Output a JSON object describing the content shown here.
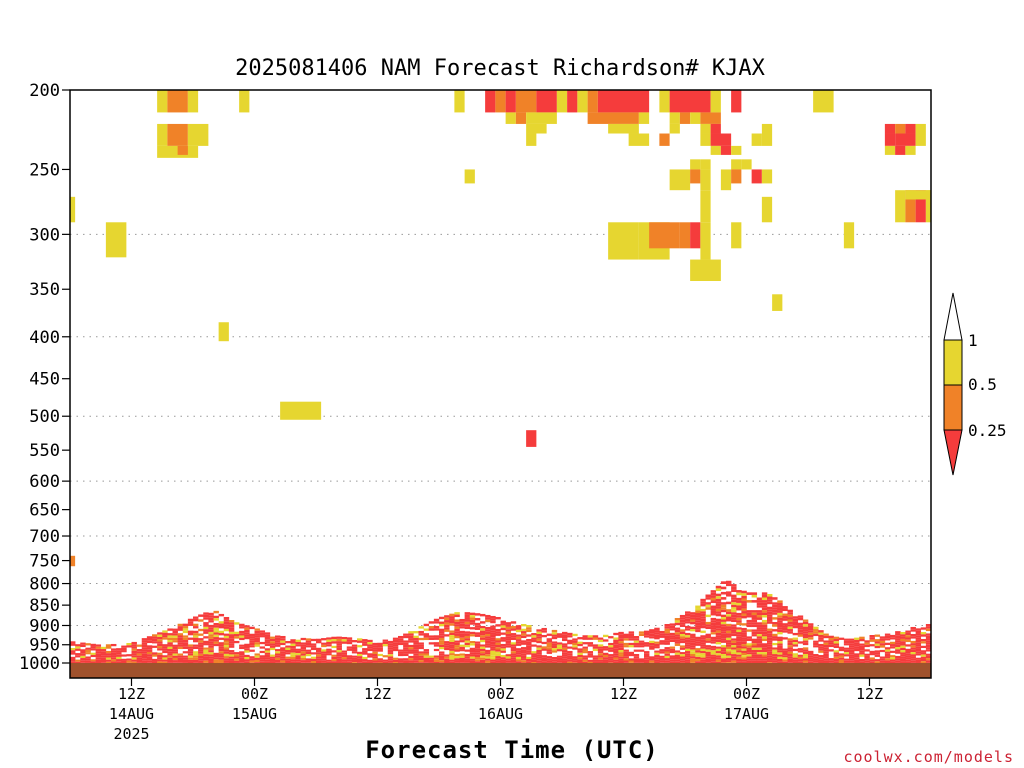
{
  "chart_data": {
    "type": "heatmap",
    "title": "2025081406 NAM Forecast Richardson# KJAX",
    "xlabel": "Forecast Time (UTC)",
    "ylabel": "",
    "y_scale": "log",
    "y_reversed": true,
    "ylim": [
      1000,
      200
    ],
    "y_ticks": [
      200,
      250,
      300,
      350,
      400,
      450,
      500,
      550,
      600,
      650,
      700,
      750,
      800,
      850,
      900,
      950,
      1000
    ],
    "y_gridlines": [
      300,
      400,
      500,
      600,
      700,
      800,
      900
    ],
    "grid": true,
    "xlim_hours": [
      0,
      84
    ],
    "x_ticks": [
      {
        "hour": 6,
        "label": "12Z",
        "date": "14AUG",
        "year": "2025"
      },
      {
        "hour": 18,
        "label": "00Z",
        "date": "15AUG",
        "year": ""
      },
      {
        "hour": 30,
        "label": "12Z",
        "date": "",
        "year": ""
      },
      {
        "hour": 42,
        "label": "00Z",
        "date": "16AUG",
        "year": ""
      },
      {
        "hour": 54,
        "label": "12Z",
        "date": "",
        "year": ""
      },
      {
        "hour": 66,
        "label": "00Z",
        "date": "17AUG",
        "year": ""
      },
      {
        "hour": 78,
        "label": "12Z",
        "date": "",
        "year": ""
      }
    ],
    "colorbar": {
      "levels": [
        "1",
        "0.5",
        "0.25"
      ],
      "bins": [
        {
          "range": "> 1",
          "color": "#ffffff"
        },
        {
          "range": "0.5 - 1",
          "color": "#e6d630"
        },
        {
          "range": "0.25 - 0.5",
          "color": "#f08228"
        },
        {
          "range": "< 0.25",
          "color": "#f53c3c"
        }
      ],
      "position": "right"
    },
    "ground_color": "#a0522d",
    "upper_cells": [
      {
        "t": [
          8.5,
          9.5
        ],
        "p": [
          200,
          213
        ],
        "c": "y"
      },
      {
        "t": [
          9.5,
          11.5
        ],
        "p": [
          200,
          213
        ],
        "c": "o"
      },
      {
        "t": [
          11.5,
          12.5
        ],
        "p": [
          200,
          213
        ],
        "c": "y"
      },
      {
        "t": [
          16.5,
          17.5
        ],
        "p": [
          200,
          213
        ],
        "c": "y"
      },
      {
        "t": [
          37.5,
          38.5
        ],
        "p": [
          200,
          213
        ],
        "c": "y"
      },
      {
        "t": [
          40.5,
          41.5
        ],
        "p": [
          200,
          213
        ],
        "c": "r"
      },
      {
        "t": [
          41.5,
          42.5
        ],
        "p": [
          200,
          213
        ],
        "c": "o"
      },
      {
        "t": [
          42.5,
          43.5
        ],
        "p": [
          200,
          213
        ],
        "c": "r"
      },
      {
        "t": [
          43.5,
          45.5
        ],
        "p": [
          200,
          213
        ],
        "c": "o"
      },
      {
        "t": [
          45.5,
          47.5
        ],
        "p": [
          200,
          213
        ],
        "c": "r"
      },
      {
        "t": [
          47.5,
          48.5
        ],
        "p": [
          200,
          213
        ],
        "c": "y"
      },
      {
        "t": [
          48.5,
          49.5
        ],
        "p": [
          200,
          213
        ],
        "c": "r"
      },
      {
        "t": [
          49.5,
          50.5
        ],
        "p": [
          200,
          213
        ],
        "c": "y"
      },
      {
        "t": [
          50.5,
          51.5
        ],
        "p": [
          200,
          213
        ],
        "c": "o"
      },
      {
        "t": [
          51.5,
          56.5
        ],
        "p": [
          200,
          213
        ],
        "c": "r"
      },
      {
        "t": [
          57.5,
          58.5
        ],
        "p": [
          200,
          213
        ],
        "c": "y"
      },
      {
        "t": [
          58.5,
          62.5
        ],
        "p": [
          200,
          213
        ],
        "c": "r"
      },
      {
        "t": [
          62.5,
          63.5
        ],
        "p": [
          200,
          213
        ],
        "c": "y"
      },
      {
        "t": [
          64.5,
          65.5
        ],
        "p": [
          200,
          213
        ],
        "c": "r"
      },
      {
        "t": [
          72.5,
          74.5
        ],
        "p": [
          200,
          213
        ],
        "c": "y"
      },
      {
        "t": [
          42.5,
          43.5
        ],
        "p": [
          213,
          220
        ],
        "c": "y"
      },
      {
        "t": [
          43.5,
          44.5
        ],
        "p": [
          213,
          220
        ],
        "c": "o"
      },
      {
        "t": [
          44.5,
          47.5
        ],
        "p": [
          213,
          220
        ],
        "c": "y"
      },
      {
        "t": [
          50.5,
          55.5
        ],
        "p": [
          213,
          220
        ],
        "c": "o"
      },
      {
        "t": [
          55.5,
          56.5
        ],
        "p": [
          213,
          220
        ],
        "c": "y"
      },
      {
        "t": [
          58.5,
          59.5
        ],
        "p": [
          213,
          220
        ],
        "c": "y"
      },
      {
        "t": [
          59.5,
          60.5
        ],
        "p": [
          213,
          220
        ],
        "c": "o"
      },
      {
        "t": [
          60.5,
          61.5
        ],
        "p": [
          213,
          220
        ],
        "c": "y"
      },
      {
        "t": [
          61.5,
          63.5
        ],
        "p": [
          213,
          220
        ],
        "c": "o"
      },
      {
        "t": [
          44.5,
          46.5
        ],
        "p": [
          220,
          226
        ],
        "c": "y"
      },
      {
        "t": [
          52.5,
          55.5
        ],
        "p": [
          220,
          226
        ],
        "c": "y"
      },
      {
        "t": [
          58.5,
          59.5
        ],
        "p": [
          220,
          226
        ],
        "c": "y"
      },
      {
        "t": [
          61.5,
          62.5
        ],
        "p": [
          220,
          226
        ],
        "c": "y"
      },
      {
        "t": [
          62.5,
          63.5
        ],
        "p": [
          220,
          226
        ],
        "c": "r"
      },
      {
        "t": [
          79.5,
          80.5
        ],
        "p": [
          220,
          226
        ],
        "c": "r"
      },
      {
        "t": [
          80.5,
          81.5
        ],
        "p": [
          220,
          226
        ],
        "c": "o"
      },
      {
        "t": [
          81.5,
          82.5
        ],
        "p": [
          220,
          226
        ],
        "c": "r"
      },
      {
        "t": [
          8.5,
          9.5
        ],
        "p": [
          220,
          234
        ],
        "c": "y"
      },
      {
        "t": [
          9.5,
          11.5
        ],
        "p": [
          220,
          234
        ],
        "c": "o"
      },
      {
        "t": [
          11.5,
          13.5
        ],
        "p": [
          220,
          234
        ],
        "c": "y"
      },
      {
        "t": [
          8.5,
          12.5
        ],
        "p": [
          234,
          242
        ],
        "c": "y"
      },
      {
        "t": [
          10.5,
          11.5
        ],
        "p": [
          234,
          240
        ],
        "c": "o"
      },
      {
        "t": [
          44.5,
          45.5
        ],
        "p": [
          226,
          234
        ],
        "c": "y"
      },
      {
        "t": [
          54.5,
          56.5
        ],
        "p": [
          226,
          234
        ],
        "c": "y"
      },
      {
        "t": [
          57.5,
          58.5
        ],
        "p": [
          226,
          234
        ],
        "c": "o"
      },
      {
        "t": [
          61.5,
          62.5
        ],
        "p": [
          226,
          234
        ],
        "c": "y"
      },
      {
        "t": [
          62.5,
          64.5
        ],
        "p": [
          226,
          234
        ],
        "c": "r"
      },
      {
        "t": [
          67.5,
          68.5
        ],
        "p": [
          220,
          234
        ],
        "c": "y"
      },
      {
        "t": [
          66.5,
          67.5
        ],
        "p": [
          226,
          234
        ],
        "c": "y"
      },
      {
        "t": [
          79.5,
          80.5
        ],
        "p": [
          226,
          234
        ],
        "c": "r"
      },
      {
        "t": [
          80.5,
          82.5
        ],
        "p": [
          226,
          234
        ],
        "c": "r"
      },
      {
        "t": [
          82.5,
          83.5
        ],
        "p": [
          220,
          234
        ],
        "c": "y"
      },
      {
        "t": [
          62.5,
          63.5
        ],
        "p": [
          234,
          240
        ],
        "c": "y"
      },
      {
        "t": [
          63.5,
          64.5
        ],
        "p": [
          234,
          240
        ],
        "c": "r"
      },
      {
        "t": [
          64.5,
          65.5
        ],
        "p": [
          234,
          240
        ],
        "c": "y"
      },
      {
        "t": [
          79.5,
          80.5
        ],
        "p": [
          234,
          240
        ],
        "c": "y"
      },
      {
        "t": [
          80.5,
          81.5
        ],
        "p": [
          234,
          240
        ],
        "c": "r"
      },
      {
        "t": [
          81.5,
          82.5
        ],
        "p": [
          234,
          240
        ],
        "c": "y"
      },
      {
        "t": [
          60.5,
          61.5
        ],
        "p": [
          243,
          250
        ],
        "c": "y"
      },
      {
        "t": [
          61.5,
          62.5
        ],
        "p": [
          243,
          250
        ],
        "c": "y"
      },
      {
        "t": [
          64.5,
          65.5
        ],
        "p": [
          243,
          250
        ],
        "c": "y"
      },
      {
        "t": [
          65.5,
          66.5
        ],
        "p": [
          243,
          250
        ],
        "c": "y"
      },
      {
        "t": [
          58.5,
          60.5
        ],
        "p": [
          250,
          265
        ],
        "c": "y"
      },
      {
        "t": [
          60.5,
          61.5
        ],
        "p": [
          250,
          260
        ],
        "c": "o"
      },
      {
        "t": [
          61.5,
          62.5
        ],
        "p": [
          250,
          265
        ],
        "c": "y"
      },
      {
        "t": [
          38.5,
          39.5
        ],
        "p": [
          250,
          260
        ],
        "c": "y"
      },
      {
        "t": [
          63.5,
          64.5
        ],
        "p": [
          250,
          265
        ],
        "c": "y"
      },
      {
        "t": [
          64.5,
          65.5
        ],
        "p": [
          250,
          260
        ],
        "c": "o"
      },
      {
        "t": [
          66.5,
          67.5
        ],
        "p": [
          250,
          260
        ],
        "c": "r"
      },
      {
        "t": [
          67.5,
          68.5
        ],
        "p": [
          250,
          260
        ],
        "c": "y"
      },
      {
        "t": [
          61.5,
          62.5
        ],
        "p": [
          265,
          290
        ],
        "c": "y"
      },
      {
        "t": [
          67.5,
          68.5
        ],
        "p": [
          270,
          290
        ],
        "c": "y"
      },
      {
        "t": [
          0,
          0.5
        ],
        "p": [
          270,
          290
        ],
        "c": "y"
      },
      {
        "t": [
          80.5,
          81.5
        ],
        "p": [
          265,
          290
        ],
        "c": "y"
      },
      {
        "t": [
          81.5,
          82.5
        ],
        "p": [
          265,
          290
        ],
        "c": "o"
      },
      {
        "t": [
          82.5,
          83.5
        ],
        "p": [
          265,
          290
        ],
        "c": "r"
      },
      {
        "t": [
          83.5,
          84
        ],
        "p": [
          265,
          290
        ],
        "c": "y"
      },
      {
        "t": [
          81.5,
          84
        ],
        "p": [
          265,
          272
        ],
        "c": "y"
      },
      {
        "t": [
          3.5,
          5.5
        ],
        "p": [
          290,
          320
        ],
        "c": "y"
      },
      {
        "t": [
          52.5,
          55.5
        ],
        "p": [
          290,
          322
        ],
        "c": "y"
      },
      {
        "t": [
          55.5,
          58.5
        ],
        "p": [
          290,
          322
        ],
        "c": "y"
      },
      {
        "t": [
          56.5,
          59.5
        ],
        "p": [
          290,
          312
        ],
        "c": "o"
      },
      {
        "t": [
          59.5,
          60.5
        ],
        "p": [
          290,
          312
        ],
        "c": "o"
      },
      {
        "t": [
          60.5,
          61.5
        ],
        "p": [
          290,
          312
        ],
        "c": "r"
      },
      {
        "t": [
          61.5,
          62.5
        ],
        "p": [
          290,
          322
        ],
        "c": "y"
      },
      {
        "t": [
          64.5,
          65.5
        ],
        "p": [
          290,
          312
        ],
        "c": "y"
      },
      {
        "t": [
          75.5,
          76.5
        ],
        "p": [
          290,
          312
        ],
        "c": "y"
      },
      {
        "t": [
          60.5,
          63.5
        ],
        "p": [
          322,
          342
        ],
        "c": "y"
      },
      {
        "t": [
          68.5,
          69.5
        ],
        "p": [
          355,
          372
        ],
        "c": "y"
      },
      {
        "t": [
          14.5,
          15.5
        ],
        "p": [
          384,
          405
        ],
        "c": "y"
      },
      {
        "t": [
          20.5,
          24.5
        ],
        "p": [
          480,
          505
        ],
        "c": "y"
      },
      {
        "t": [
          44.5,
          45.5
        ],
        "p": [
          520,
          545
        ],
        "c": "r"
      },
      {
        "t": [
          0,
          0.5
        ],
        "p": [
          740,
          762
        ],
        "c": "o"
      }
    ],
    "boundary_layer": {
      "moist_top_hpa": [
        [
          0,
          940
        ],
        [
          3,
          950
        ],
        [
          6,
          945
        ],
        [
          8,
          925
        ],
        [
          10,
          905
        ],
        [
          12,
          880
        ],
        [
          14,
          860
        ],
        [
          16,
          890
        ],
        [
          18,
          905
        ],
        [
          20,
          925
        ],
        [
          22,
          930
        ],
        [
          24,
          935
        ],
        [
          26,
          928
        ],
        [
          28,
          932
        ],
        [
          30,
          940
        ],
        [
          32,
          930
        ],
        [
          34,
          905
        ],
        [
          36,
          880
        ],
        [
          38,
          865
        ],
        [
          40,
          870
        ],
        [
          42,
          880
        ],
        [
          44,
          895
        ],
        [
          46,
          905
        ],
        [
          48,
          915
        ],
        [
          50,
          925
        ],
        [
          52,
          925
        ],
        [
          54,
          915
        ],
        [
          56,
          915
        ],
        [
          58,
          900
        ],
        [
          60,
          870
        ],
        [
          62,
          830
        ],
        [
          64,
          790
        ],
        [
          66,
          820
        ],
        [
          68,
          820
        ],
        [
          70,
          850
        ],
        [
          72,
          890
        ],
        [
          74,
          925
        ],
        [
          76,
          935
        ],
        [
          78,
          925
        ],
        [
          80,
          920
        ],
        [
          82,
          905
        ],
        [
          84,
          895
        ]
      ],
      "surface_hpa": 1013
    }
  },
  "credit": "coolwx.com/models"
}
